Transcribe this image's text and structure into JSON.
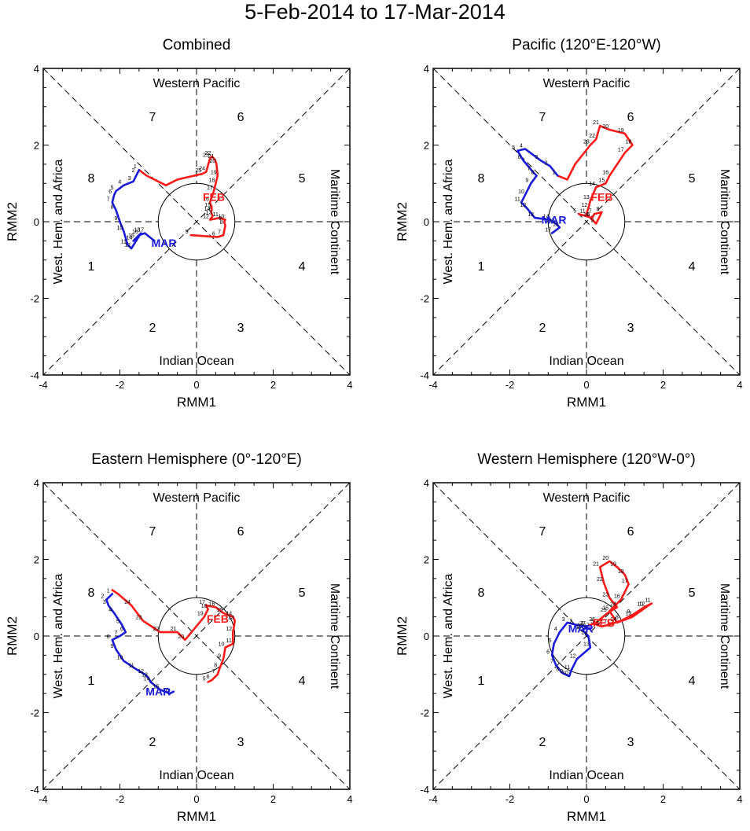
{
  "figure_title": "5-Feb-2014 to 17-Mar-2014",
  "colors": {
    "feb": "#ff1a1a",
    "mar": "#1a1adb",
    "axes": "#000000"
  },
  "chart_data": [
    {
      "type": "line",
      "title": "Combined",
      "xlabel": "RMM1",
      "ylabel": "RMM2",
      "xlim": [
        -4,
        4
      ],
      "ylim": [
        -4,
        4
      ],
      "xticks": [
        "-4",
        "-2",
        "0",
        "2",
        "4"
      ],
      "yticks": [
        "-4",
        "-2",
        "0",
        "2",
        "4"
      ],
      "regions": {
        "top": "Western Pacific",
        "bottom": "Indian Ocean",
        "left": "West. Hem. and Africa",
        "right": "Maritime Continent"
      },
      "phases": [
        "1",
        "2",
        "3",
        "4",
        "5",
        "6",
        "7",
        "8"
      ],
      "series": [
        {
          "name": "FEB",
          "label": "FEB",
          "color": "#ff1a1a",
          "x": [
            -0.15,
            0.55,
            0.7,
            0.75,
            0.72,
            0.75,
            0.6,
            0.35,
            0.42,
            0.38,
            0.4,
            0.35,
            0.45,
            0.5,
            0.55,
            0.52,
            0.48,
            0.4,
            0.35,
            0.25,
            0.15,
            -0.5,
            -0.8,
            -1.3,
            -1.5
          ],
          "y": [
            -0.35,
            -0.4,
            -0.35,
            -0.1,
            0.0,
            0.05,
            0.1,
            0.05,
            0.15,
            0.25,
            0.35,
            0.5,
            0.8,
            1.0,
            1.2,
            1.5,
            1.62,
            1.7,
            1.65,
            1.3,
            1.25,
            1.1,
            0.95,
            1.2,
            1.35
          ],
          "day_labels": [
            "5",
            "6",
            "7",
            "8",
            "9",
            "10",
            "11",
            "12",
            "13",
            "14",
            "15",
            "16",
            "17",
            "18",
            "19",
            "20",
            "21",
            "22",
            "23",
            "24",
            "25"
          ],
          "month_label_pos": [
            0.45,
            0.65
          ]
        },
        {
          "name": "MAR",
          "label": "MAR",
          "color": "#1a1adb",
          "x": [
            -1.5,
            -1.55,
            -1.65,
            -1.9,
            -2.1,
            -2.15,
            -2.2,
            -2.1,
            -2.0,
            -1.9,
            -1.8,
            -1.7,
            -1.45,
            -1.65,
            -1.6,
            -1.5,
            -1.35,
            -1.1
          ],
          "y": [
            1.35,
            1.25,
            1.05,
            0.95,
            0.8,
            0.7,
            0.5,
            0.3,
            0.0,
            -0.25,
            -0.6,
            -0.7,
            -0.3,
            -0.5,
            -0.45,
            -0.35,
            -0.3,
            -0.5
          ],
          "day_labels": [
            "1",
            "2",
            "3",
            "4",
            "5",
            "6",
            "7",
            "8",
            "9",
            "10",
            "11",
            "12",
            "13",
            "14",
            "15",
            "16",
            "17"
          ],
          "month_label_pos": [
            -0.85,
            -0.55
          ]
        }
      ]
    },
    {
      "type": "line",
      "title": "Pacific (120°E-120°W)",
      "xlabel": "RMM1",
      "ylabel": "RMM2",
      "xlim": [
        -4,
        4
      ],
      "ylim": [
        -4,
        4
      ],
      "xticks": [
        "-4",
        "-2",
        "0",
        "2",
        "4"
      ],
      "yticks": [
        "-4",
        "-2",
        "0",
        "2",
        "4"
      ],
      "regions": {
        "top": "Western Pacific",
        "bottom": "Indian Ocean",
        "left": "West. Hem. and Africa",
        "right": "Maritime Continent"
      },
      "phases": [
        "1",
        "2",
        "3",
        "4",
        "5",
        "6",
        "7",
        "8"
      ],
      "series": [
        {
          "name": "FEB",
          "label": "FEB",
          "color": "#ff1a1a",
          "x": [
            -0.2,
            0.15,
            0.2,
            0.4,
            0.25,
            0.1,
            0.0,
            0.05,
            0.1,
            0.25,
            0.5,
            0.6,
            1.0,
            1.2,
            1.0,
            0.6,
            0.35,
            0.25,
            0.1,
            -0.3,
            -0.45,
            -0.5,
            -0.75
          ],
          "y": [
            0.2,
            0.1,
            0.2,
            0.25,
            -0.05,
            0.1,
            0.2,
            0.35,
            0.55,
            0.9,
            1.0,
            1.2,
            1.8,
            2.0,
            2.3,
            2.4,
            2.5,
            2.15,
            2.0,
            1.5,
            1.2,
            1.1,
            1.2
          ],
          "day_labels": [
            "5",
            "6",
            "7",
            "8",
            "9",
            "10",
            "11",
            "12",
            "13",
            "14",
            "15",
            "16",
            "17",
            "18",
            "19",
            "20",
            "21",
            "22",
            "23"
          ],
          "month_label_pos": [
            0.4,
            0.65
          ]
        },
        {
          "name": "MAR",
          "label": "MAR",
          "color": "#1a1adb",
          "x": [
            -0.75,
            -0.95,
            -1.2,
            -1.6,
            -1.8,
            -1.65,
            -1.4,
            -1.3,
            -1.45,
            -1.6,
            -1.7,
            -1.55,
            -1.35,
            -0.95,
            -0.8,
            -0.7,
            -0.9
          ],
          "y": [
            1.2,
            1.45,
            1.6,
            1.9,
            1.85,
            1.6,
            1.3,
            1.2,
            1.0,
            0.7,
            0.5,
            0.35,
            0.1,
            0.05,
            -0.05,
            -0.15,
            -0.3
          ],
          "day_labels": [
            "1",
            "2",
            "3",
            "4",
            "5",
            "6",
            "7",
            "8",
            "9",
            "10",
            "11",
            "12",
            "13",
            "14",
            "15",
            "16",
            "17"
          ],
          "month_label_pos": [
            -0.85,
            0.05
          ]
        }
      ]
    },
    {
      "type": "line",
      "title": "Eastern Hemisphere (0°-120°E)",
      "xlabel": "RMM1",
      "ylabel": "RMM2",
      "xlim": [
        -4,
        4
      ],
      "ylim": [
        -4,
        4
      ],
      "xticks": [
        "-4",
        "-2",
        "0",
        "2",
        "4"
      ],
      "yticks": [
        "-4",
        "-2",
        "0",
        "2",
        "4"
      ],
      "regions": {
        "top": "Western Pacific",
        "bottom": "Indian Ocean",
        "left": "West. Hem. and Africa",
        "right": "Maritime Continent"
      },
      "phases": [
        "1",
        "2",
        "3",
        "4",
        "5",
        "6",
        "7",
        "8"
      ],
      "series": [
        {
          "name": "FEB",
          "label": "FEB",
          "color": "#ff1a1a",
          "x": [
            0.3,
            0.4,
            0.55,
            0.6,
            0.7,
            0.75,
            0.95,
            0.95,
            1.0,
            0.95,
            0.7,
            0.5,
            0.25,
            0.3,
            0.2,
            -0.3,
            -0.5,
            -0.95,
            -1.4,
            -1.7,
            -2.05,
            -2.2
          ],
          "y": [
            -1.2,
            -1.15,
            -1.0,
            -0.85,
            -0.6,
            -0.3,
            -0.2,
            0.1,
            0.4,
            0.5,
            0.6,
            0.75,
            0.8,
            0.7,
            0.5,
            -0.1,
            0.1,
            0.1,
            0.4,
            0.8,
            1.1,
            1.2
          ],
          "day_labels": [
            "5",
            "6",
            "7",
            "8",
            "9",
            "10",
            "11",
            "12",
            "13",
            "14",
            "15",
            "16",
            "17",
            "18",
            "19",
            "20",
            "21",
            "22",
            "23",
            "24"
          ],
          "month_label_pos": [
            0.55,
            0.45
          ]
        },
        {
          "name": "MAR",
          "label": "MAR",
          "color": "#1a1adb",
          "x": [
            -2.2,
            -2.35,
            -2.3,
            -2.15,
            -1.95,
            -1.85,
            -2.0,
            -2.2,
            -2.1,
            -1.9,
            -1.6,
            -1.35,
            -1.25,
            -1.2,
            -0.95,
            -0.7,
            -0.6
          ],
          "y": [
            1.1,
            0.95,
            0.8,
            0.6,
            0.3,
            0.1,
            0.0,
            -0.1,
            -0.35,
            -0.65,
            -0.85,
            -1.0,
            -1.1,
            -1.2,
            -1.4,
            -1.5,
            -1.45
          ],
          "day_labels": [
            "1",
            "2",
            "3",
            "4",
            "5",
            "6",
            "7",
            "8",
            "9",
            "10",
            "11",
            "12",
            "13",
            "14",
            "15",
            "16"
          ],
          "month_label_pos": [
            -1.0,
            -1.45
          ]
        }
      ]
    },
    {
      "type": "line",
      "title": "Western Hemisphere (120°W-0°)",
      "xlabel": "RMM1",
      "ylabel": "RMM2",
      "xlim": [
        -4,
        4
      ],
      "ylim": [
        -4,
        4
      ],
      "xticks": [
        "-4",
        "-2",
        "0",
        "2",
        "4"
      ],
      "yticks": [
        "-4",
        "-2",
        "0",
        "2",
        "4"
      ],
      "regions": {
        "top": "Western Pacific",
        "bottom": "Indian Ocean",
        "left": "West. Hem. and Africa",
        "right": "Maritime Continent"
      },
      "phases": [
        "1",
        "2",
        "3",
        "4",
        "5",
        "6",
        "7",
        "8"
      ],
      "series": [
        {
          "name": "FEB",
          "label": "FEB",
          "color": "#ff1a1a",
          "x": [
            0.25,
            0.4,
            0.6,
            0.9,
            1.2,
            1.5,
            1.7,
            1.55,
            1.2,
            0.8,
            0.6,
            0.9,
            1.1,
            1.0,
            0.8,
            0.6,
            0.35,
            0.45,
            0.6,
            0.8,
            0.55,
            0.25,
            0.0
          ],
          "y": [
            0.3,
            0.25,
            0.3,
            0.4,
            0.55,
            0.75,
            0.85,
            0.75,
            0.5,
            0.35,
            0.65,
            0.95,
            1.35,
            1.6,
            1.8,
            1.95,
            1.8,
            1.4,
            1.0,
            0.75,
            0.6,
            0.35,
            0.25
          ],
          "day_labels": [
            "5",
            "6",
            "7",
            "8",
            "9",
            "10",
            "11",
            "12",
            "13",
            "14",
            "15",
            "16",
            "17",
            "18",
            "19",
            "20",
            "21",
            "22",
            "23",
            "24",
            "25",
            "26",
            "27",
            "28"
          ],
          "month_label_pos": [
            0.45,
            0.35
          ]
        },
        {
          "name": "MAR",
          "label": "MAR",
          "color": "#1a1adb",
          "x": [
            0.0,
            -0.3,
            -0.5,
            -0.7,
            -0.85,
            -0.9,
            -0.8,
            -0.65,
            -0.55,
            -0.45,
            -0.4,
            -0.25,
            0.1,
            0.05,
            -0.1,
            -0.05,
            0.1
          ],
          "y": [
            0.25,
            0.3,
            0.35,
            0.1,
            -0.2,
            -0.5,
            -0.75,
            -0.95,
            -1.0,
            -1.05,
            -0.9,
            -0.6,
            -0.3,
            0.0,
            0.15,
            0.2,
            0.2
          ],
          "day_labels": [
            "1",
            "2",
            "3",
            "4",
            "5",
            "6",
            "7",
            "8",
            "9",
            "10",
            "11",
            "12",
            "13",
            "14",
            "15",
            "16",
            "17"
          ],
          "month_label_pos": [
            -0.15,
            0.2
          ]
        }
      ]
    }
  ]
}
